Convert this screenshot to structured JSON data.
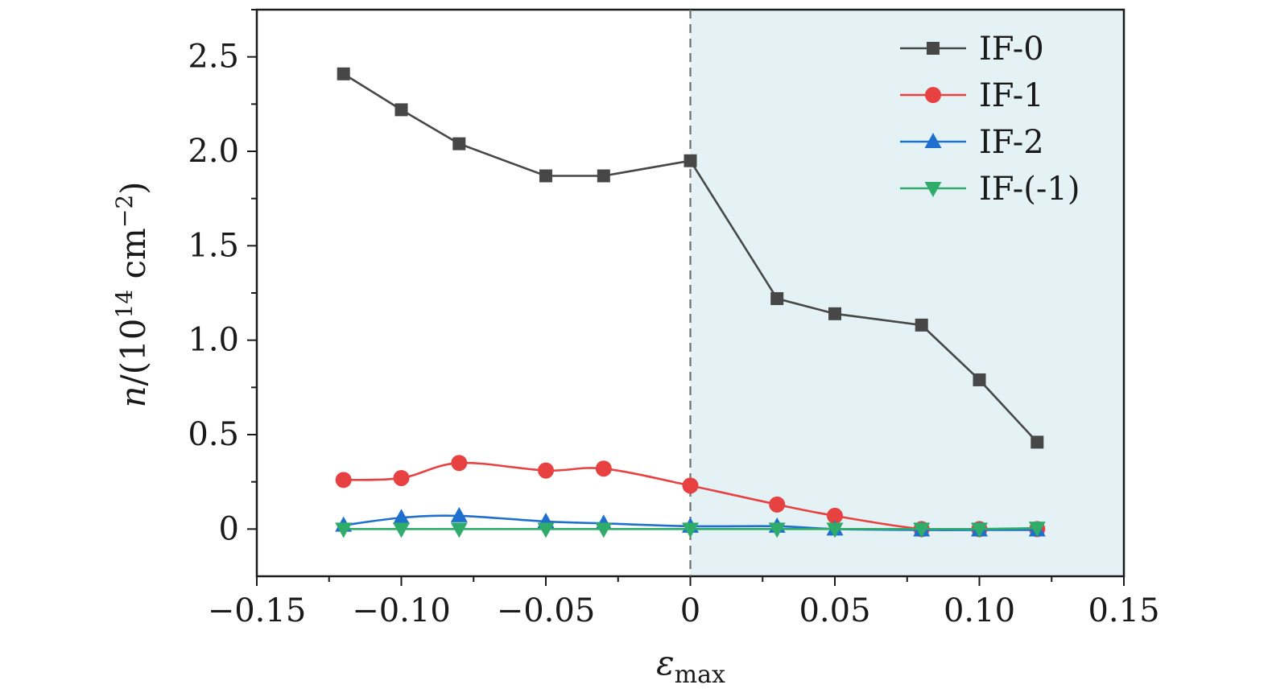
{
  "chart_data": {
    "type": "line",
    "xlabel": {
      "symbol": "ε",
      "subscript": "max"
    },
    "ylabel": {
      "prefix": "n/(10",
      "exponent": "14",
      "unit": " cm",
      "unit_exponent": "−2",
      "suffix": ")"
    },
    "xlim": [
      -0.15,
      0.15
    ],
    "ylim": [
      -0.25,
      2.75
    ],
    "xticks": [
      -0.15,
      -0.1,
      -0.05,
      0,
      0.05,
      0.1,
      0.15
    ],
    "xtick_labels": [
      "−0.15",
      "−0.10",
      "−0.05",
      "0",
      "0.05",
      "0.10",
      "0.15"
    ],
    "yticks": [
      0,
      0.5,
      1.0,
      1.5,
      2.0,
      2.5
    ],
    "ytick_labels": [
      "0",
      "0.5",
      "1.0",
      "1.5",
      "2.0",
      "2.5"
    ],
    "shaded_region": {
      "from": 0,
      "to": 0.15,
      "color": "#e4f2f6"
    },
    "reference_line": {
      "x": 0,
      "style": "dashed"
    },
    "legend_position": "top-right",
    "grid": false,
    "x": [
      -0.12,
      -0.1,
      -0.08,
      -0.05,
      -0.03,
      0,
      0.03,
      0.05,
      0.08,
      0.1,
      0.12
    ],
    "series": [
      {
        "name": "IF-0",
        "color": "#474747",
        "marker": "square",
        "smooth": false,
        "values": [
          2.41,
          2.22,
          2.04,
          1.87,
          1.87,
          1.95,
          1.22,
          1.14,
          1.08,
          0.79,
          0.46
        ]
      },
      {
        "name": "IF-1",
        "color": "#e84141",
        "marker": "circle",
        "smooth": true,
        "values": [
          0.26,
          0.27,
          0.35,
          0.31,
          0.32,
          0.23,
          0.13,
          0.07,
          0.0,
          0.0,
          0.0
        ]
      },
      {
        "name": "IF-2",
        "color": "#1f6fcf",
        "marker": "triangle-up",
        "smooth": true,
        "values": [
          0.02,
          0.06,
          0.07,
          0.04,
          0.03,
          0.015,
          0.015,
          0.0,
          -0.005,
          -0.005,
          -0.005
        ]
      },
      {
        "name": "IF-(-1)",
        "color": "#2fab6a",
        "marker": "triangle-down",
        "smooth": false,
        "values": [
          0.0,
          0.0,
          0.0,
          0.0,
          0.0,
          0.0,
          0.0,
          0.0,
          0.0,
          0.0,
          0.005
        ]
      }
    ]
  }
}
